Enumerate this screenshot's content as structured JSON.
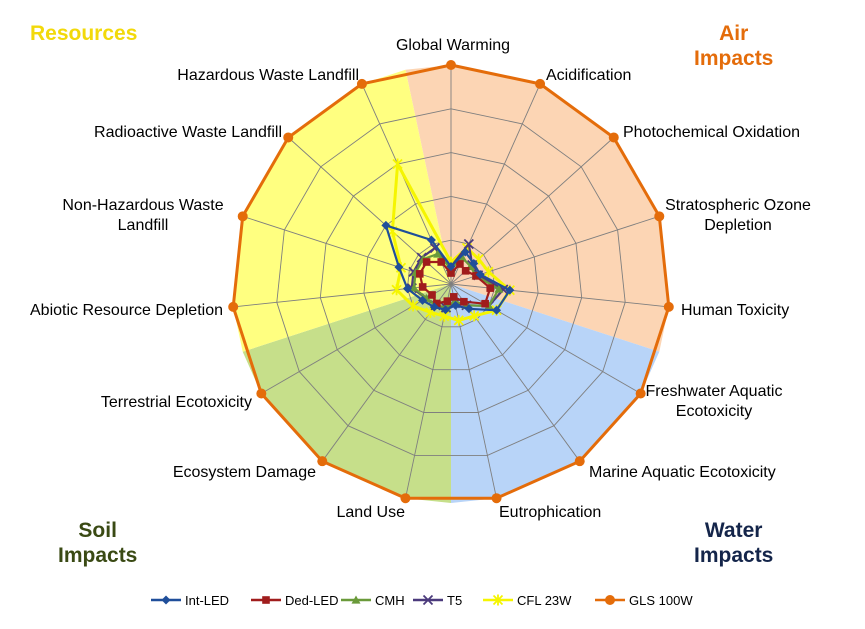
{
  "quadrant_labels": {
    "resources": "Resources",
    "air": [
      "Air",
      "Impacts"
    ],
    "soil": [
      "Soil",
      "Impacts"
    ],
    "water": [
      "Water",
      "Impacts"
    ]
  },
  "colors": {
    "air_bg": "#fcd5b4",
    "water_bg": "#b8d4f8",
    "soil_bg": "#c6df8a",
    "resources_bg": "#ffff80",
    "grid": "#7f7f7f",
    "resources_label": "#f2d90a",
    "air_label": "#e46c0a",
    "soil_label": "#3a4a14",
    "water_label": "#14254a"
  },
  "chart_data": {
    "type": "radar",
    "categories": [
      "Global Warming",
      "Acidification",
      "Photochemical Oxidation",
      "Stratospheric Ozone Depletion",
      "Human Toxicity",
      "Freshwater Aquatic Ecotoxicity",
      "Marine Aquatic Ecotoxicity",
      "Eutrophication",
      "Land Use",
      "Ecosystem Damage",
      "Terrestrial Ecotoxicity",
      "Abiotic Resource Depletion",
      "Non-Hazardous Waste Landfill",
      "Radioactive Waste Landfill",
      "Hazardous Waste Landfill"
    ],
    "category_groups": [
      {
        "name": "Air Impacts",
        "categories": [
          "Global Warming",
          "Acidification",
          "Photochemical Oxidation",
          "Stratospheric Ozone Depletion",
          "Human Toxicity"
        ],
        "color": "#fcd5b4"
      },
      {
        "name": "Water Impacts",
        "categories": [
          "Freshwater Aquatic Ecotoxicity",
          "Marine Aquatic Ecotoxicity",
          "Eutrophication"
        ],
        "color": "#b8d4f8"
      },
      {
        "name": "Soil Impacts",
        "categories": [
          "Land Use",
          "Ecosystem Damage",
          "Terrestrial Ecotoxicity"
        ],
        "color": "#c6df8a"
      },
      {
        "name": "Resources",
        "categories": [
          "Abiotic Resource Depletion",
          "Non-Hazardous Waste Landfill",
          "Radioactive Waste Landfill",
          "Hazardous Waste Landfill"
        ],
        "color": "#ffff80"
      }
    ],
    "rlim": [
      0,
      1
    ],
    "grid_rings": 5,
    "grid": true,
    "legend_position": "bottom",
    "series": [
      {
        "name": "Int-LED",
        "color": "#1f4e9a",
        "marker": "diamond",
        "values": [
          0.08,
          0.16,
          0.14,
          0.14,
          0.27,
          0.24,
          0.14,
          0.1,
          0.12,
          0.13,
          0.15,
          0.2,
          0.25,
          0.4,
          0.22
        ]
      },
      {
        "name": "Ded-LED",
        "color": "#a01c1c",
        "marker": "square",
        "values": [
          0.05,
          0.1,
          0.09,
          0.12,
          0.18,
          0.18,
          0.1,
          0.06,
          0.08,
          0.11,
          0.1,
          0.13,
          0.15,
          0.15,
          0.11
        ]
      },
      {
        "name": "CMH",
        "color": "#6a9a3a",
        "marker": "triangle",
        "values": [
          0.07,
          0.13,
          0.12,
          0.12,
          0.22,
          0.2,
          0.12,
          0.08,
          0.11,
          0.12,
          0.13,
          0.17,
          0.17,
          0.17,
          0.15
        ]
      },
      {
        "name": "T5",
        "color": "#4b3a7c",
        "marker": "x",
        "values": [
          0.08,
          0.2,
          0.13,
          0.13,
          0.24,
          0.2,
          0.12,
          0.09,
          0.11,
          0.12,
          0.13,
          0.18,
          0.18,
          0.18,
          0.18
        ]
      },
      {
        "name": "CFL 23W",
        "color": "#f5f500",
        "marker": "asterisk",
        "values": [
          0.1,
          0.18,
          0.17,
          0.18,
          0.27,
          0.24,
          0.18,
          0.17,
          0.15,
          0.16,
          0.2,
          0.25,
          0.24,
          0.36,
          0.6
        ]
      },
      {
        "name": "GLS 100W",
        "color": "#e46c0a",
        "marker": "circle",
        "values": [
          1,
          1,
          1,
          1,
          1,
          1,
          1,
          1,
          1,
          1,
          1,
          1,
          1,
          1,
          1
        ]
      }
    ]
  }
}
